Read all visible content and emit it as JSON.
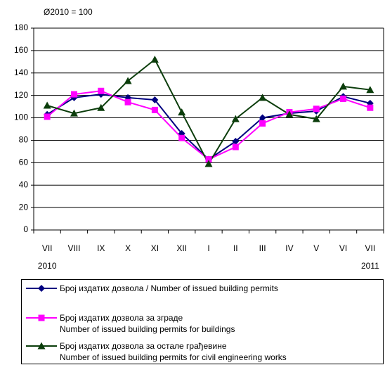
{
  "chart_data": {
    "type": "line",
    "subtitle": "Ø2010 = 100",
    "categories": [
      "VII",
      "VIII",
      "IX",
      "X",
      "XI",
      "XII",
      "I",
      "II",
      "III",
      "IV",
      "V",
      "VI",
      "VII"
    ],
    "start_year": "2010",
    "end_year": "2011",
    "series": [
      {
        "name": "Број издатих дозвола / Number  of  issued building permits",
        "color": "#000080",
        "marker": "diamond",
        "values": [
          103,
          118,
          121,
          118,
          116,
          86,
          63,
          79,
          100,
          104,
          106,
          119,
          113
        ]
      },
      {
        "name": "Број издатих дозвола за зграде\nNumber  of  issued building permits for buildings",
        "color": "#ff00ff",
        "marker": "square",
        "values": [
          101,
          121,
          124,
          114,
          107,
          82,
          63,
          74,
          95,
          105,
          108,
          117,
          109
        ]
      },
      {
        "name": "Број издатих дозвола за остале грађевине\nNumber  of  issued building permits for civil engineering works",
        "color": "#0b3d0b",
        "marker": "triangle",
        "values": [
          111,
          104,
          109,
          133,
          152,
          105,
          59,
          99,
          118,
          103,
          99,
          128,
          125
        ]
      }
    ],
    "ylim": [
      0,
      180
    ],
    "yticks": [
      0,
      20,
      40,
      60,
      80,
      100,
      120,
      140,
      160,
      180
    ],
    "grid": true
  }
}
